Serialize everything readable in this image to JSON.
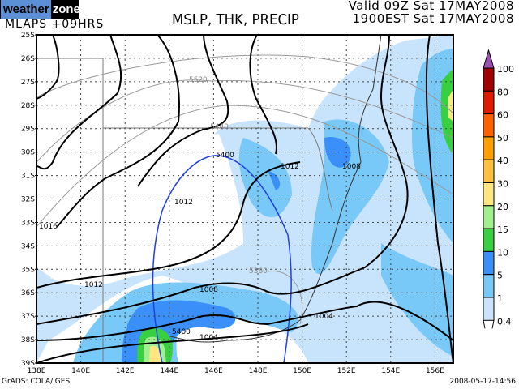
{
  "logo": {
    "left": "weather",
    "right": "zone"
  },
  "header": {
    "model": "MLAPS +09HRS",
    "title": "MSLP, THK, PRECIP",
    "valid": "Valid 09Z Sat 17MAY2008",
    "local": "1900EST Sat 17MAY2008"
  },
  "axes": {
    "lat_labels": [
      "25S",
      "26S",
      "27S",
      "28S",
      "29S",
      "30S",
      "31S",
      "32S",
      "33S",
      "34S",
      "35S",
      "36S",
      "37S",
      "38S",
      "39S"
    ],
    "lon_labels": [
      "138E",
      "140E",
      "142E",
      "144E",
      "146E",
      "148E",
      "150E",
      "152E",
      "154E",
      "156E"
    ]
  },
  "contour_labels": {
    "mslp": [
      "1016",
      "1012",
      "1012",
      "1012",
      "1008",
      "1008",
      "1004",
      "1004"
    ],
    "thickness": [
      "5520",
      "5440",
      "5400",
      "5360",
      "5400"
    ]
  },
  "legend": {
    "labels": [
      "100",
      "80",
      "60",
      "50",
      "40",
      "30",
      "20",
      "15",
      "10",
      "5",
      "1",
      "0.4"
    ],
    "colors": [
      "#a00000",
      "#e01a00",
      "#ff6000",
      "#ffa000",
      "#ffc040",
      "#ffe680",
      "#a0f090",
      "#38d040",
      "#3a90f8",
      "#78c8f8",
      "#c8e4fc"
    ],
    "arrow_color": "#9b4fb0"
  },
  "colors": {
    "precip_light": "#c8e4fc",
    "precip_mid": "#78c8f8",
    "precip_heavy": "#3a90f8",
    "thickness_main": "#2040e0"
  },
  "footer": {
    "credit": "GrADS: COLA/IGES",
    "timestamp": "2008-05-17-14:56"
  }
}
